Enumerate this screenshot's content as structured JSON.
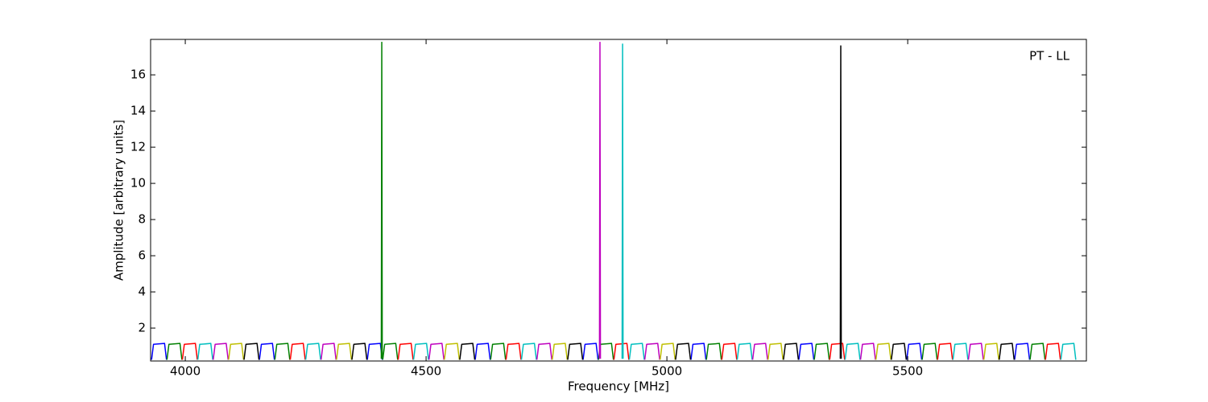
{
  "chart_data": {
    "type": "line",
    "xlabel": "Frequency [MHz]",
    "ylabel": "Amplitude [arbitrary units]",
    "annotation": "PT - LL",
    "xlim": [
      3928,
      5871
    ],
    "xticks": [
      4000,
      4500,
      5000,
      5500
    ],
    "ylim": [
      0.18,
      17.96
    ],
    "yticks": [
      2,
      4,
      6,
      8,
      10,
      12,
      14,
      16
    ],
    "series": [
      {
        "color": "#0000ff",
        "x": [
          3930,
          3934,
          3957,
          3961,
          null,
          4154,
          4158,
          4181,
          4185,
          null,
          4378,
          4382,
          4405,
          4409,
          null,
          4602,
          4606,
          4629,
          4633,
          null,
          4826,
          4830,
          4853,
          4857,
          null,
          5050,
          5054,
          5077,
          5081,
          null,
          5274,
          5278,
          5301,
          5305,
          null,
          5498,
          5502,
          5525,
          5529,
          null,
          5722,
          5726,
          5749,
          5753
        ],
        "values": [
          0.25,
          1.1,
          1.15,
          0.25,
          null,
          0.25,
          1.1,
          1.15,
          0.25,
          null,
          0.25,
          1.1,
          1.15,
          0.25,
          null,
          0.25,
          1.1,
          1.15,
          0.25,
          null,
          0.25,
          1.1,
          1.15,
          0.25,
          null,
          0.25,
          1.1,
          1.15,
          0.25,
          null,
          0.25,
          1.1,
          1.15,
          0.25,
          null,
          0.25,
          1.1,
          1.15,
          0.25,
          null,
          0.25,
          1.1,
          1.15,
          0.25
        ]
      },
      {
        "color": "#008000",
        "x": [
          3962,
          3966,
          3989,
          3993,
          null,
          4186,
          4190,
          4213,
          4217,
          null,
          4410,
          4414,
          4437,
          4441,
          null,
          4634,
          4638,
          4661,
          4665,
          null,
          4858,
          4862,
          4885,
          4889,
          null,
          5082,
          5086,
          5109,
          5113,
          null,
          5306,
          5310,
          5333,
          5337,
          null,
          5530,
          5534,
          5557,
          5561,
          null,
          5754,
          5758,
          5781,
          5785
        ],
        "values": [
          0.25,
          1.1,
          1.15,
          0.25,
          null,
          0.25,
          1.1,
          1.15,
          0.25,
          null,
          0.25,
          1.1,
          1.15,
          0.25,
          null,
          0.25,
          1.1,
          1.15,
          0.25,
          null,
          0.25,
          1.1,
          1.15,
          0.25,
          null,
          0.25,
          1.1,
          1.15,
          0.25,
          null,
          0.25,
          1.1,
          1.15,
          0.25,
          null,
          0.25,
          1.1,
          1.15,
          0.25,
          null,
          0.25,
          1.1,
          1.15,
          0.25
        ]
      },
      {
        "color": "#ff0000",
        "x": [
          3994,
          3998,
          4021,
          4025,
          null,
          4218,
          4222,
          4245,
          4249,
          null,
          4442,
          4446,
          4469,
          4473,
          null,
          4666,
          4670,
          4693,
          4697,
          null,
          4890,
          4894,
          4917,
          4921,
          null,
          5114,
          5118,
          5141,
          5145,
          null,
          5338,
          5342,
          5365,
          5369,
          null,
          5562,
          5566,
          5589,
          5593,
          null,
          5786,
          5790,
          5813,
          5817
        ],
        "values": [
          0.25,
          1.1,
          1.15,
          0.25,
          null,
          0.25,
          1.1,
          1.15,
          0.25,
          null,
          0.25,
          1.1,
          1.15,
          0.25,
          null,
          0.25,
          1.1,
          1.15,
          0.25,
          null,
          0.25,
          1.1,
          1.15,
          0.25,
          null,
          0.25,
          1.1,
          1.15,
          0.25,
          null,
          0.25,
          1.1,
          1.15,
          0.25,
          null,
          0.25,
          1.1,
          1.15,
          0.25,
          null,
          0.25,
          1.1,
          1.15,
          0.25
        ]
      },
      {
        "color": "#00bfbf",
        "x": [
          4026,
          4030,
          4053,
          4057,
          null,
          4250,
          4254,
          4277,
          4281,
          null,
          4474,
          4478,
          4501,
          4505,
          null,
          4698,
          4702,
          4725,
          4729,
          null,
          4922,
          4926,
          4949,
          4953,
          null,
          5146,
          5150,
          5173,
          5177,
          null,
          5370,
          5374,
          5397,
          5401,
          null,
          5594,
          5598,
          5621,
          5625,
          null,
          5818,
          5822,
          5845,
          5849
        ],
        "values": [
          0.25,
          1.1,
          1.15,
          0.25,
          null,
          0.25,
          1.1,
          1.15,
          0.25,
          null,
          0.25,
          1.1,
          1.15,
          0.25,
          null,
          0.25,
          1.1,
          1.15,
          0.25,
          null,
          0.25,
          1.1,
          1.15,
          0.25,
          null,
          0.25,
          1.1,
          1.15,
          0.25,
          null,
          0.25,
          1.1,
          1.15,
          0.25,
          null,
          0.25,
          1.1,
          1.15,
          0.25,
          null,
          0.25,
          1.1,
          1.15,
          0.25
        ]
      },
      {
        "color": "#bf00bf",
        "x": [
          4058,
          4062,
          4085,
          4089,
          null,
          4282,
          4286,
          4309,
          4313,
          null,
          4506,
          4510,
          4533,
          4537,
          null,
          4730,
          4734,
          4757,
          4761,
          null,
          4954,
          4958,
          4981,
          4985,
          null,
          5178,
          5182,
          5205,
          5209,
          null,
          5402,
          5406,
          5429,
          5433,
          null,
          5626,
          5630,
          5653,
          5657
        ],
        "values": [
          0.25,
          1.1,
          1.15,
          0.25,
          null,
          0.25,
          1.1,
          1.15,
          0.25,
          null,
          0.25,
          1.1,
          1.15,
          0.25,
          null,
          0.25,
          1.1,
          1.15,
          0.25,
          null,
          0.25,
          1.1,
          1.15,
          0.25,
          null,
          0.25,
          1.1,
          1.15,
          0.25,
          null,
          0.25,
          1.1,
          1.15,
          0.25,
          null,
          0.25,
          1.1,
          1.15,
          0.25
        ]
      },
      {
        "color": "#bfbf00",
        "x": [
          4090,
          4094,
          4117,
          4121,
          null,
          4314,
          4318,
          4341,
          4345,
          null,
          4538,
          4542,
          4565,
          4569,
          null,
          4762,
          4766,
          4789,
          4793,
          null,
          4986,
          4990,
          5013,
          5017,
          null,
          5210,
          5214,
          5237,
          5241,
          null,
          5434,
          5438,
          5461,
          5465,
          null,
          5658,
          5662,
          5685,
          5689
        ],
        "values": [
          0.25,
          1.1,
          1.15,
          0.25,
          null,
          0.25,
          1.1,
          1.15,
          0.25,
          null,
          0.25,
          1.1,
          1.15,
          0.25,
          null,
          0.25,
          1.1,
          1.15,
          0.25,
          null,
          0.25,
          1.1,
          1.15,
          0.25,
          null,
          0.25,
          1.1,
          1.15,
          0.25,
          null,
          0.25,
          1.1,
          1.15,
          0.25,
          null,
          0.25,
          1.1,
          1.15,
          0.25
        ]
      },
      {
        "color": "#000000",
        "x": [
          4122,
          4126,
          4149,
          4153,
          null,
          4346,
          4350,
          4373,
          4377,
          null,
          4570,
          4574,
          4597,
          4601,
          null,
          4794,
          4798,
          4821,
          4825,
          null,
          5018,
          5022,
          5045,
          5049,
          null,
          5242,
          5246,
          5269,
          5273,
          null,
          5466,
          5470,
          5493,
          5497,
          null,
          5690,
          5694,
          5717,
          5721
        ],
        "values": [
          0.25,
          1.1,
          1.15,
          0.25,
          null,
          0.25,
          1.1,
          1.15,
          0.25,
          null,
          0.25,
          1.1,
          1.15,
          0.25,
          null,
          0.25,
          1.1,
          1.15,
          0.25,
          null,
          0.25,
          1.1,
          1.15,
          0.25,
          null,
          0.25,
          1.1,
          1.15,
          0.25,
          null,
          0.25,
          1.1,
          1.15,
          0.25,
          null,
          0.25,
          1.1,
          1.15,
          0.25
        ]
      },
      {
        "color": "#008000",
        "x": [
          4407,
          4408,
          4409
        ],
        "values": [
          0.3,
          17.8,
          0.3
        ]
      },
      {
        "color": "#bf00bf",
        "x": [
          4860,
          4861,
          4862
        ],
        "values": [
          0.3,
          17.8,
          0.3
        ]
      },
      {
        "color": "#00bfbf",
        "x": [
          4907,
          4908,
          4909
        ],
        "values": [
          0.3,
          17.7,
          0.3
        ]
      },
      {
        "color": "#000000",
        "x": [
          5360,
          5361,
          5362
        ],
        "values": [
          0.3,
          17.6,
          0.3
        ]
      }
    ]
  }
}
